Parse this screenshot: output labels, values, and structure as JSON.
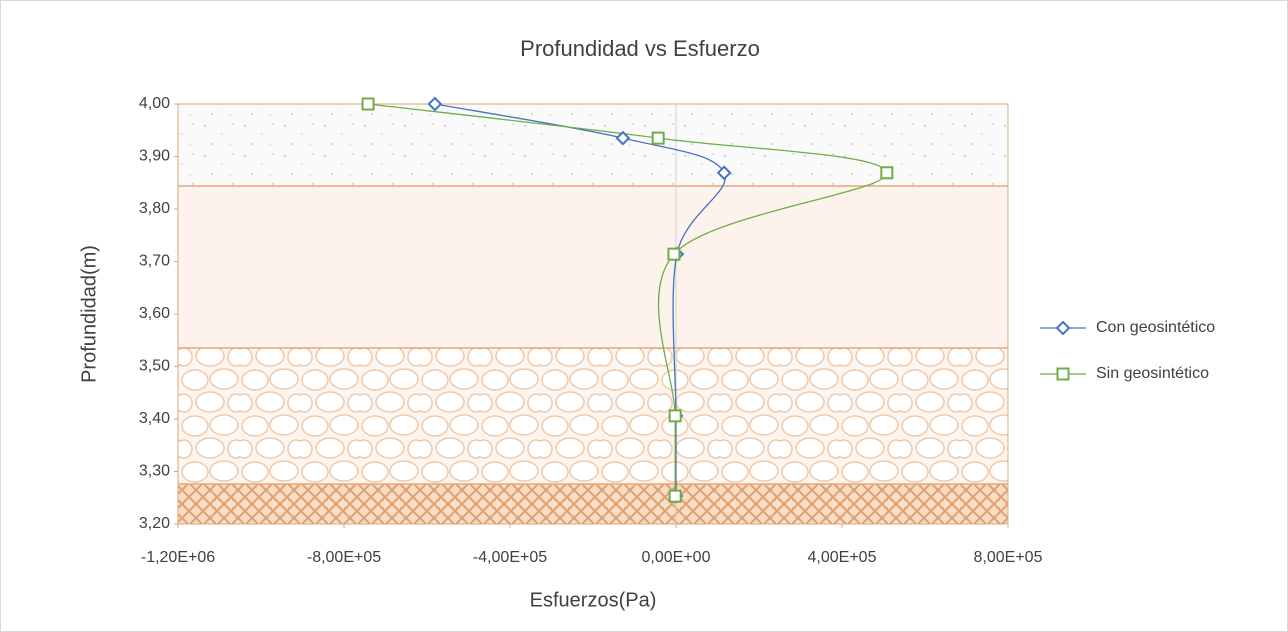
{
  "chart_data": {
    "type": "line",
    "title": "Profundidad vs Esfuerzo",
    "xlabel": "Esfuerzos(Pa)",
    "ylabel": "Profundidad(m)",
    "xlim": [
      -1200000,
      800000
    ],
    "xticks": [
      {
        "value": -1200000,
        "label": "-1,20E+06"
      },
      {
        "value": -800000,
        "label": "-8,00E+05"
      },
      {
        "value": -400000,
        "label": "-4,00E+05"
      },
      {
        "value": 0,
        "label": "0,00E+00"
      },
      {
        "value": 400000,
        "label": "4,00E+05"
      },
      {
        "value": 800000,
        "label": "8,00E+05"
      }
    ],
    "ylim": [
      3.2,
      4.0
    ],
    "yticks": [
      {
        "value": 3.2,
        "label": "3,20"
      },
      {
        "value": 3.3,
        "label": "3,30"
      },
      {
        "value": 3.4,
        "label": "3,40"
      },
      {
        "value": 3.5,
        "label": "3,50"
      },
      {
        "value": 3.6,
        "label": "3,60"
      },
      {
        "value": 3.7,
        "label": "3,70"
      },
      {
        "value": 3.8,
        "label": "3,80"
      },
      {
        "value": 3.9,
        "label": "3,90"
      },
      {
        "value": 4.0,
        "label": "4,00"
      }
    ],
    "legend": "right",
    "series": [
      {
        "name": "Con geosintético",
        "color": "#4472c4",
        "marker": "diamond",
        "x": [
          -581000,
          -128000,
          116000,
          2000,
          0,
          0
        ],
        "values": [
          4.0,
          3.935,
          3.869,
          3.714,
          3.406,
          3.253
        ]
      },
      {
        "name": "Sin geosintético",
        "color": "#70ad47",
        "marker": "square",
        "x": [
          -742000,
          -43000,
          508000,
          -5000,
          -2000,
          -2000
        ],
        "values": [
          4.0,
          3.935,
          3.869,
          3.714,
          3.406,
          3.253
        ]
      }
    ]
  }
}
